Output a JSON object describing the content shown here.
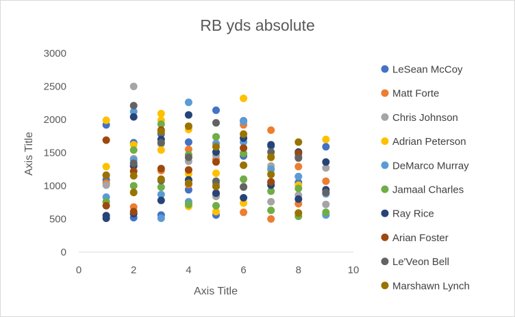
{
  "chart_data": {
    "type": "scatter",
    "title": "RB yds absolute",
    "xlabel": "Axis Title",
    "ylabel": "Axis Title",
    "xlim": [
      0,
      10
    ],
    "ylim": [
      0,
      3000
    ],
    "x_ticks": [
      0,
      2,
      4,
      6,
      8,
      10
    ],
    "y_ticks": [
      0,
      500,
      1000,
      1500,
      2000,
      2500,
      3000
    ],
    "grid": false,
    "legend_position": "right",
    "series": [
      {
        "name": "LeSean McCoy",
        "color": "#4472C4",
        "points": [
          [
            1,
            1920
          ],
          [
            1,
            1090
          ],
          [
            2,
            1650
          ],
          [
            2,
            520
          ],
          [
            3,
            1780
          ],
          [
            3,
            560
          ],
          [
            4,
            1660
          ],
          [
            4,
            940
          ],
          [
            5,
            2140
          ],
          [
            5,
            560
          ],
          [
            6,
            1980
          ],
          [
            6,
            1450
          ],
          [
            7,
            1600
          ],
          [
            7,
            1050
          ],
          [
            8,
            1500
          ],
          [
            8,
            1050
          ],
          [
            9,
            1590
          ],
          [
            9,
            880
          ]
        ]
      },
      {
        "name": "Matt Forte",
        "color": "#ED7D31",
        "points": [
          [
            1,
            1040
          ],
          [
            2,
            680
          ],
          [
            3,
            1230
          ],
          [
            4,
            1550
          ],
          [
            4,
            1020
          ],
          [
            5,
            1400
          ],
          [
            5,
            860
          ],
          [
            6,
            1920
          ],
          [
            6,
            600
          ],
          [
            7,
            1840
          ],
          [
            7,
            500
          ],
          [
            8,
            1290
          ],
          [
            8,
            730
          ],
          [
            9,
            1070
          ]
        ]
      },
      {
        "name": "Chris Johnson",
        "color": "#A5A5A5",
        "points": [
          [
            1,
            1010
          ],
          [
            2,
            2500
          ],
          [
            2,
            1410
          ],
          [
            3,
            1630
          ],
          [
            4,
            1370
          ],
          [
            5,
            1460
          ],
          [
            5,
            840
          ],
          [
            6,
            1310
          ],
          [
            6,
            990
          ],
          [
            7,
            1300
          ],
          [
            7,
            760
          ],
          [
            8,
            860
          ],
          [
            9,
            1270
          ],
          [
            9,
            720
          ]
        ]
      },
      {
        "name": "Adrian Peterson",
        "color": "#FFC000",
        "points": [
          [
            1,
            1990
          ],
          [
            1,
            1290
          ],
          [
            2,
            1620
          ],
          [
            2,
            1000
          ],
          [
            3,
            2090
          ],
          [
            3,
            1990
          ],
          [
            3,
            1540
          ],
          [
            4,
            1850
          ],
          [
            4,
            1180
          ],
          [
            4,
            690
          ],
          [
            5,
            1190
          ],
          [
            5,
            610
          ],
          [
            6,
            2320
          ],
          [
            6,
            740
          ],
          [
            7,
            1450
          ],
          [
            7,
            1190
          ],
          [
            8,
            1010
          ],
          [
            9,
            1700
          ]
        ]
      },
      {
        "name": "DeMarco Murray",
        "color": "#5B9BD5",
        "points": [
          [
            1,
            830
          ],
          [
            2,
            2120
          ],
          [
            2,
            1390
          ],
          [
            3,
            870
          ],
          [
            3,
            510
          ],
          [
            4,
            2260
          ],
          [
            4,
            760
          ],
          [
            5,
            1640
          ],
          [
            5,
            1030
          ],
          [
            6,
            1970
          ],
          [
            6,
            1660
          ],
          [
            7,
            1250
          ],
          [
            8,
            1440
          ],
          [
            8,
            1140
          ],
          [
            9,
            880
          ],
          [
            9,
            560
          ]
        ]
      },
      {
        "name": "Jamaal Charles",
        "color": "#70AD47",
        "points": [
          [
            1,
            760
          ],
          [
            2,
            1540
          ],
          [
            2,
            1000
          ],
          [
            3,
            1930
          ],
          [
            3,
            980
          ],
          [
            4,
            1470
          ],
          [
            4,
            720
          ],
          [
            5,
            1740
          ],
          [
            5,
            700
          ],
          [
            6,
            1490
          ],
          [
            6,
            1100
          ],
          [
            7,
            920
          ],
          [
            7,
            630
          ],
          [
            8,
            960
          ],
          [
            8,
            540
          ],
          [
            9,
            600
          ]
        ]
      },
      {
        "name": "Ray Rice",
        "color": "#264478",
        "points": [
          [
            1,
            550
          ],
          [
            1,
            510
          ],
          [
            2,
            2040
          ],
          [
            2,
            1300
          ],
          [
            2,
            580
          ],
          [
            3,
            1700
          ],
          [
            3,
            780
          ],
          [
            4,
            2070
          ],
          [
            4,
            1090
          ],
          [
            5,
            1510
          ],
          [
            5,
            890
          ],
          [
            6,
            1720
          ],
          [
            6,
            820
          ],
          [
            7,
            1620
          ],
          [
            7,
            1010
          ],
          [
            8,
            1510
          ],
          [
            8,
            800
          ],
          [
            9,
            1360
          ],
          [
            9,
            940
          ]
        ]
      },
      {
        "name": "Arian Foster",
        "color": "#9E480E",
        "points": [
          [
            1,
            1690
          ],
          [
            1,
            700
          ],
          [
            2,
            1220
          ],
          [
            2,
            610
          ],
          [
            3,
            1840
          ],
          [
            3,
            1260
          ],
          [
            4,
            1240
          ],
          [
            5,
            1360
          ],
          [
            6,
            1570
          ],
          [
            7,
            1060
          ],
          [
            8,
            1490
          ]
        ]
      },
      {
        "name": "Le'Veon Bell",
        "color": "#636363",
        "points": [
          [
            1,
            1160
          ],
          [
            2,
            2210
          ],
          [
            2,
            1340
          ],
          [
            3,
            1650
          ],
          [
            3,
            1080
          ],
          [
            4,
            1430
          ],
          [
            5,
            1950
          ],
          [
            5,
            1070
          ],
          [
            6,
            980
          ],
          [
            7,
            1510
          ],
          [
            8,
            1420
          ],
          [
            9,
            900
          ]
        ]
      },
      {
        "name": "Marshawn Lynch",
        "color": "#997300",
        "points": [
          [
            1,
            1160
          ],
          [
            2,
            1150
          ],
          [
            2,
            900
          ],
          [
            3,
            1820
          ],
          [
            3,
            1100
          ],
          [
            4,
            1900
          ],
          [
            4,
            1040
          ],
          [
            5,
            1590
          ],
          [
            5,
            990
          ],
          [
            6,
            1780
          ],
          [
            6,
            1310
          ],
          [
            7,
            1430
          ],
          [
            7,
            1170
          ],
          [
            8,
            1660
          ],
          [
            8,
            590
          ]
        ]
      }
    ]
  }
}
